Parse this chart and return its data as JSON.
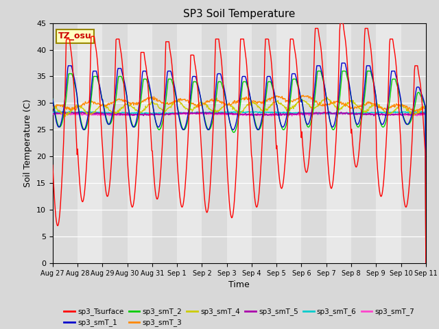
{
  "title": "SP3 Soil Temperature",
  "xlabel": "Time",
  "ylabel": "Soil Temperature (C)",
  "ylim": [
    0,
    45
  ],
  "yticks": [
    0,
    5,
    10,
    15,
    20,
    25,
    30,
    35,
    40,
    45
  ],
  "annotation": "TZ_osu",
  "series_colors": {
    "sp3_Tsurface": "#ff0000",
    "sp3_smT_1": "#0000cc",
    "sp3_smT_2": "#00cc00",
    "sp3_smT_3": "#ff8800",
    "sp3_smT_4": "#cccc00",
    "sp3_smT_5": "#aa00aa",
    "sp3_smT_6": "#00cccc",
    "sp3_smT_7": "#ff44cc"
  },
  "bg_color": "#d8d8d8",
  "plot_bg_color": "#e8e8e8",
  "x_tick_labels": [
    "Aug 27",
    "Aug 28",
    "Aug 29",
    "Aug 30",
    "Aug 31",
    "Sep 1",
    "Sep 2",
    "Sep 3",
    "Sep 4",
    "Sep 5",
    "Sep 6",
    "Sep 7",
    "Sep 8",
    "Sep 9",
    "Sep 10",
    "Sep 11"
  ],
  "legend_labels": [
    "sp3_Tsurface",
    "sp3_smT_1",
    "sp3_smT_2",
    "sp3_smT_3",
    "sp3_smT_4",
    "sp3_smT_5",
    "sp3_smT_6",
    "sp3_smT_7"
  ]
}
